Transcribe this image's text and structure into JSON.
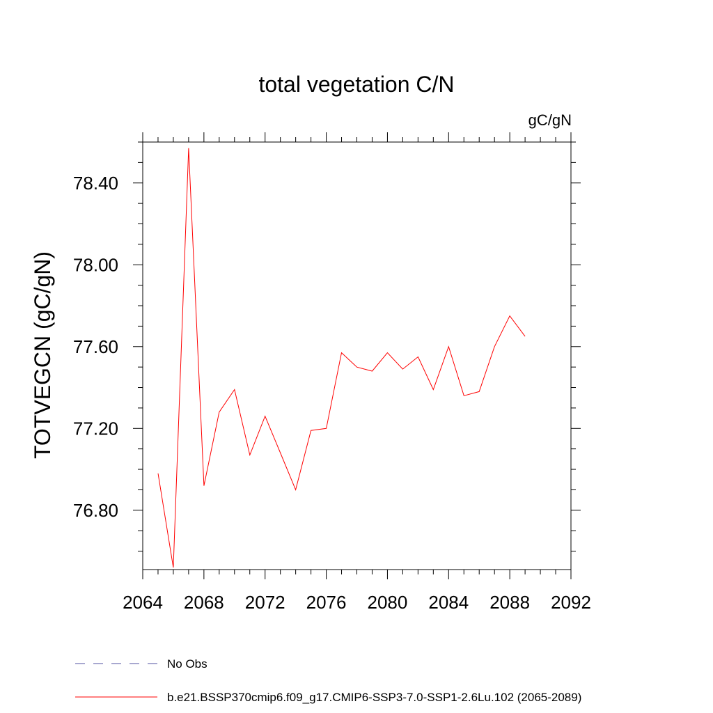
{
  "chart_data": {
    "type": "line",
    "title": "total vegetation C/N",
    "units_label": "gC/gN",
    "ylabel": "TOTVEGCN  (gC/gN)",
    "xlabel": "",
    "xlim": [
      2064,
      2092
    ],
    "ylim": [
      76.51,
      78.6
    ],
    "x_ticks": [
      2064,
      2068,
      2072,
      2076,
      2080,
      2084,
      2088,
      2092
    ],
    "y_ticks": [
      76.8,
      77.2,
      77.6,
      78.0,
      78.4
    ],
    "y_tick_labels": [
      "76.80",
      "77.20",
      "77.60",
      "78.00",
      "78.40"
    ],
    "x_minor_step": 1,
    "y_minor_step": 0.1,
    "grid": false,
    "legend_placement": "bottom",
    "series": [
      {
        "name": "b.e21.BSSP370cmip6.f09_g17.CMIP6-SSP3-7.0-SSP1-2.6Lu.102 (2065-2089)",
        "color": "#ff0000",
        "style": "solid",
        "x": [
          2065,
          2066,
          2067,
          2068,
          2069,
          2070,
          2071,
          2072,
          2073,
          2074,
          2075,
          2076,
          2077,
          2078,
          2079,
          2080,
          2081,
          2082,
          2083,
          2084,
          2085,
          2086,
          2087,
          2088,
          2089
        ],
        "y": [
          76.98,
          76.52,
          78.57,
          76.92,
          77.28,
          77.39,
          77.07,
          77.26,
          77.08,
          76.9,
          77.19,
          77.2,
          77.57,
          77.5,
          77.48,
          77.57,
          77.49,
          77.55,
          77.39,
          77.6,
          77.36,
          77.38,
          77.6,
          77.75,
          77.65
        ]
      }
    ],
    "legend": [
      {
        "label": "No Obs",
        "color": "#5050a0",
        "style": "dashed"
      },
      {
        "label": "b.e21.BSSP370cmip6.f09_g17.CMIP6-SSP3-7.0-SSP1-2.6Lu.102 (2065-2089)",
        "color": "#ff0000",
        "style": "solid"
      }
    ]
  }
}
